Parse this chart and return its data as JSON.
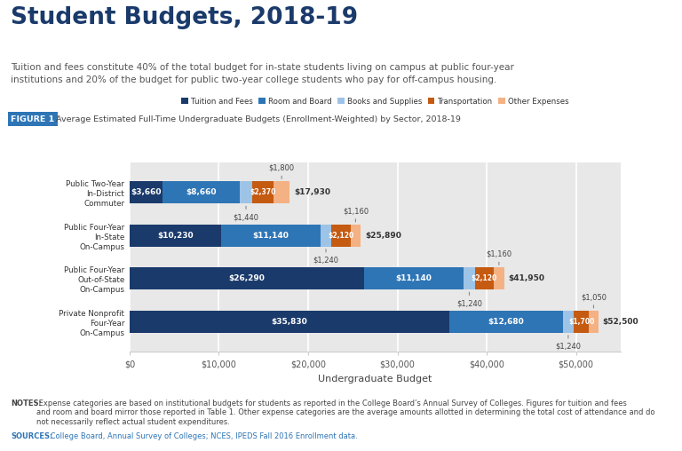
{
  "title": "Student Budgets, 2018-19",
  "subtitle": "Tuition and fees constitute 40% of the total budget for in-state students living on campus at public four-year\ninstitutions and 20% of the budget for public two-year college students who pay for off-campus housing.",
  "figure_label": "FIGURE 1",
  "figure_caption": "Average Estimated Full-Time Undergraduate Budgets (Enrollment-Weighted) by Sector, 2018-19",
  "categories": [
    "Public Two-Year\nIn-District\nCommuter",
    "Public Four-Year\nIn-State\nOn-Campus",
    "Public Four-Year\nOut-of-State\nOn-Campus",
    "Private Nonprofit\nFour-Year\nOn-Campus"
  ],
  "tuition_fees": [
    3660,
    10230,
    26290,
    35830
  ],
  "room_board": [
    8660,
    11140,
    11140,
    12680
  ],
  "books_supplies": [
    1440,
    1240,
    1240,
    1240
  ],
  "transportation": [
    2370,
    2120,
    2120,
    1700
  ],
  "other_expenses": [
    1800,
    1160,
    1160,
    1050
  ],
  "totals": [
    17930,
    25890,
    41950,
    52500
  ],
  "colors": {
    "tuition_fees": "#1a3a6b",
    "room_board": "#2e75b6",
    "books_supplies": "#9dc3e6",
    "transportation": "#c55a11",
    "other_expenses": "#f4b183"
  },
  "legend_labels": [
    "Tuition and Fees",
    "Room and Board",
    "Books and Supplies",
    "Transportation",
    "Other Expenses"
  ],
  "xlabel": "Undergraduate Budget",
  "xlim": [
    0,
    55000
  ],
  "xticks": [
    0,
    10000,
    20000,
    30000,
    40000,
    50000
  ],
  "xtick_labels": [
    "$0",
    "$10,000",
    "$20,000",
    "$30,000",
    "$40,000",
    "$50,000"
  ],
  "notes_bold": "NOTES:",
  "notes_text": " Expense categories are based on institutional budgets for students as reported in the College Board’s Annual Survey of Colleges. Figures for tuition and fees\nand room and board mirror those reported in Table 1. Other expense categories are the average amounts allotted in determining the total cost of attendance and do\nnot necessarily reflect actual student expenditures.",
  "sources_bold": "SOURCES:",
  "sources_text": " College Board, Annual Survey of Colleges; NCES, IPEDS Fall 2016 Enrollment data.",
  "bg_color": "#e8e8e8",
  "title_color": "#1a3a6b",
  "subtitle_color": "#555555",
  "bar_label_color": "#ffffff",
  "annotation_color": "#444444",
  "total_label_color": "#333333",
  "notes_color": "#444444",
  "sources_color": "#2e75b6",
  "figure_label_bg": "#2e75b6",
  "figure_label_color": "#ffffff",
  "figure_caption_color": "#444444",
  "axis_color": "#aaaaaa",
  "grid_color": "#ffffff"
}
